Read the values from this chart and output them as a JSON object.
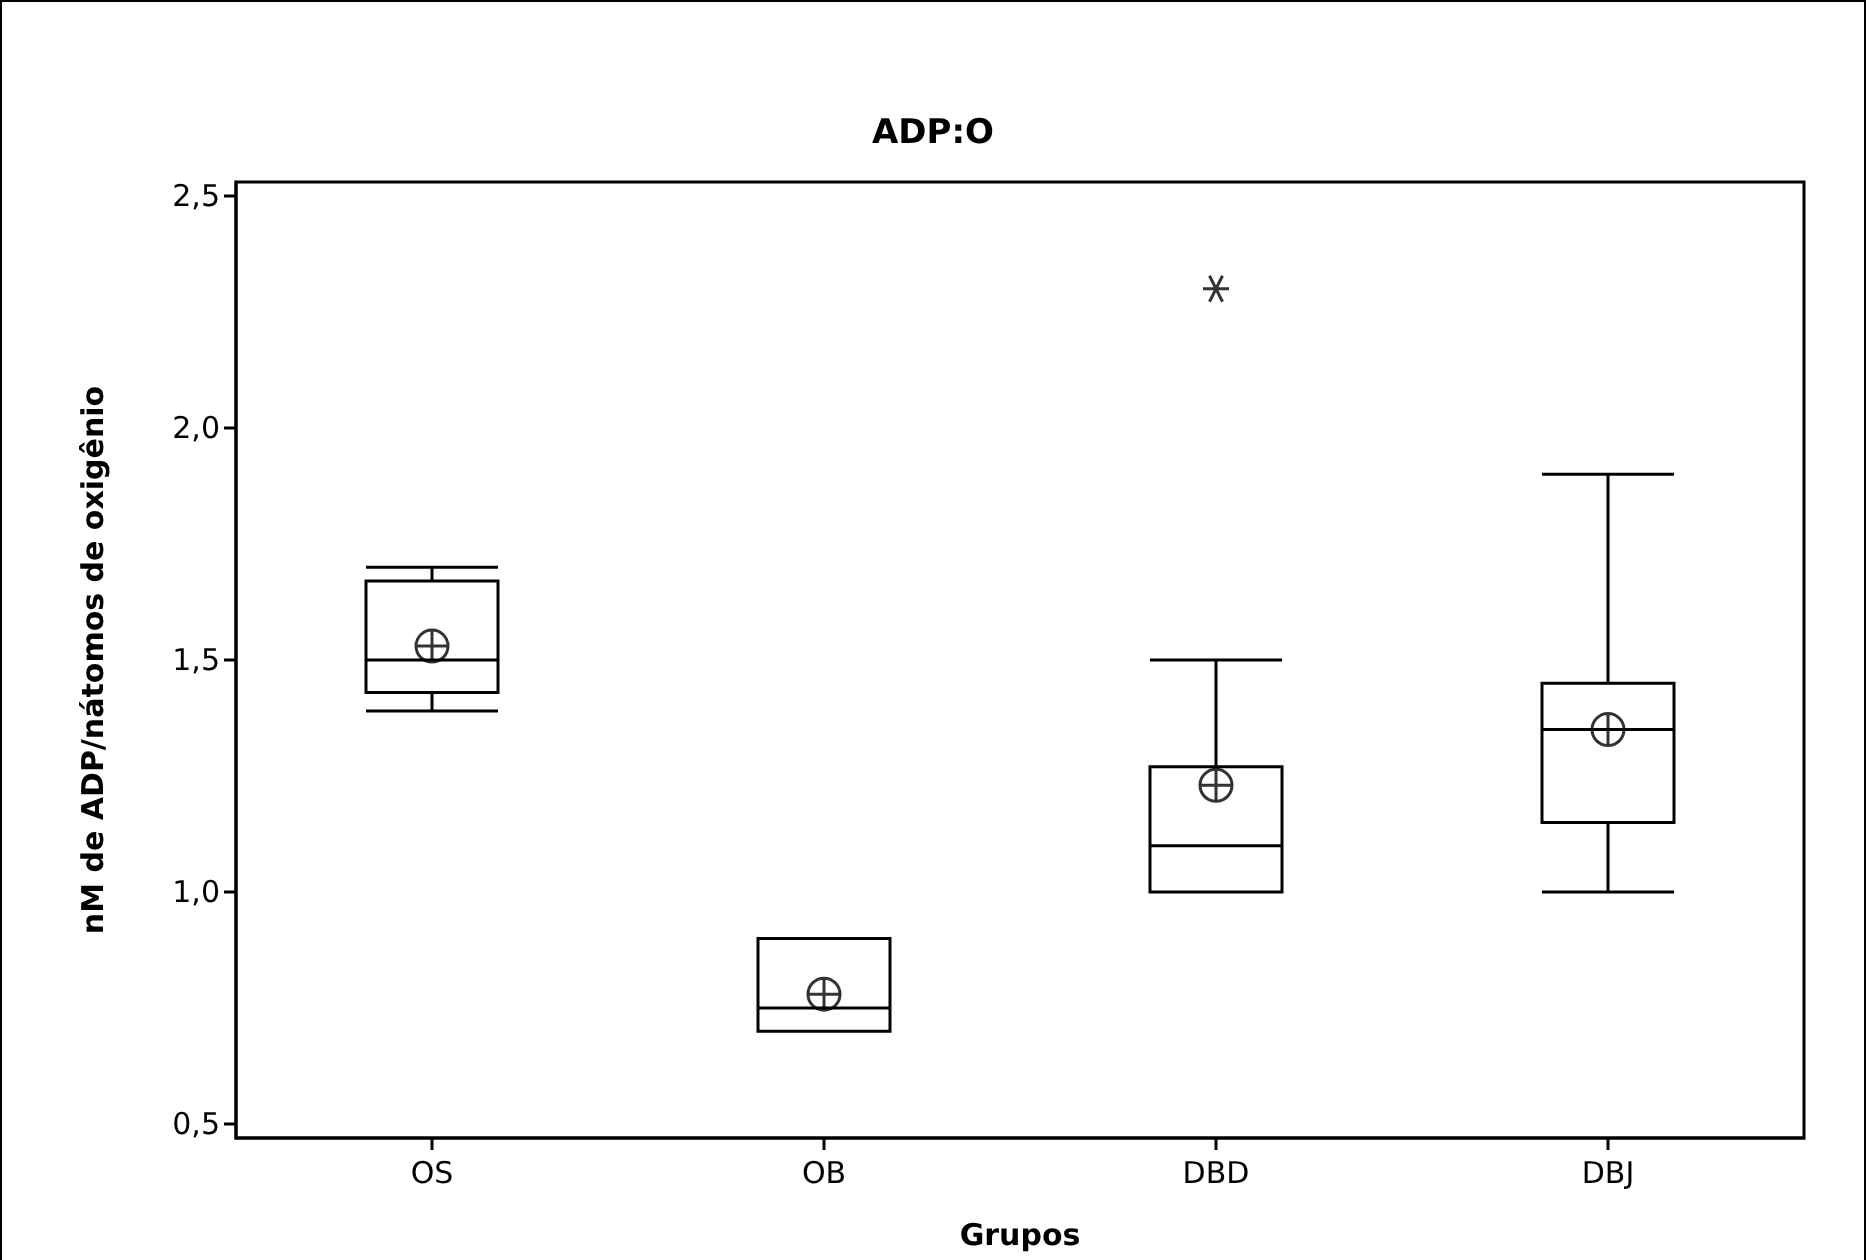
{
  "chart_data": {
    "type": "box",
    "title": "ADP:O",
    "xlabel": "Grupos",
    "ylabel": "nM de ADP/nátomos de oxigênio",
    "categories": [
      "OS",
      "OB",
      "DBD",
      "DBJ"
    ],
    "series": [
      {
        "color": "#000000",
        "boxes": [
          {
            "low": 1.39,
            "q1": 1.43,
            "median": 1.5,
            "q3": 1.67,
            "high": 1.7,
            "mean": 1.53
          },
          {
            "low": 0.7,
            "q1": 0.7,
            "median": 0.75,
            "q3": 0.9,
            "high": 0.9,
            "mean": 0.78
          },
          {
            "low": 1.0,
            "q1": 1.0,
            "median": 1.1,
            "q3": 1.27,
            "high": 1.5,
            "mean": 1.23,
            "outliers": [
              2.3
            ]
          },
          {
            "low": 1.0,
            "q1": 1.15,
            "median": 1.35,
            "q3": 1.45,
            "high": 1.9,
            "mean": 1.35
          }
        ]
      }
    ],
    "ylim": [
      0.47,
      2.53
    ],
    "yticks": [
      {
        "value": 0.5,
        "label": "0,5"
      },
      {
        "value": 1.0,
        "label": "1,0"
      },
      {
        "value": 1.5,
        "label": "1,5"
      },
      {
        "value": 2.0,
        "label": "2,0"
      },
      {
        "value": 2.5,
        "label": "2,5"
      }
    ],
    "grid": false
  }
}
